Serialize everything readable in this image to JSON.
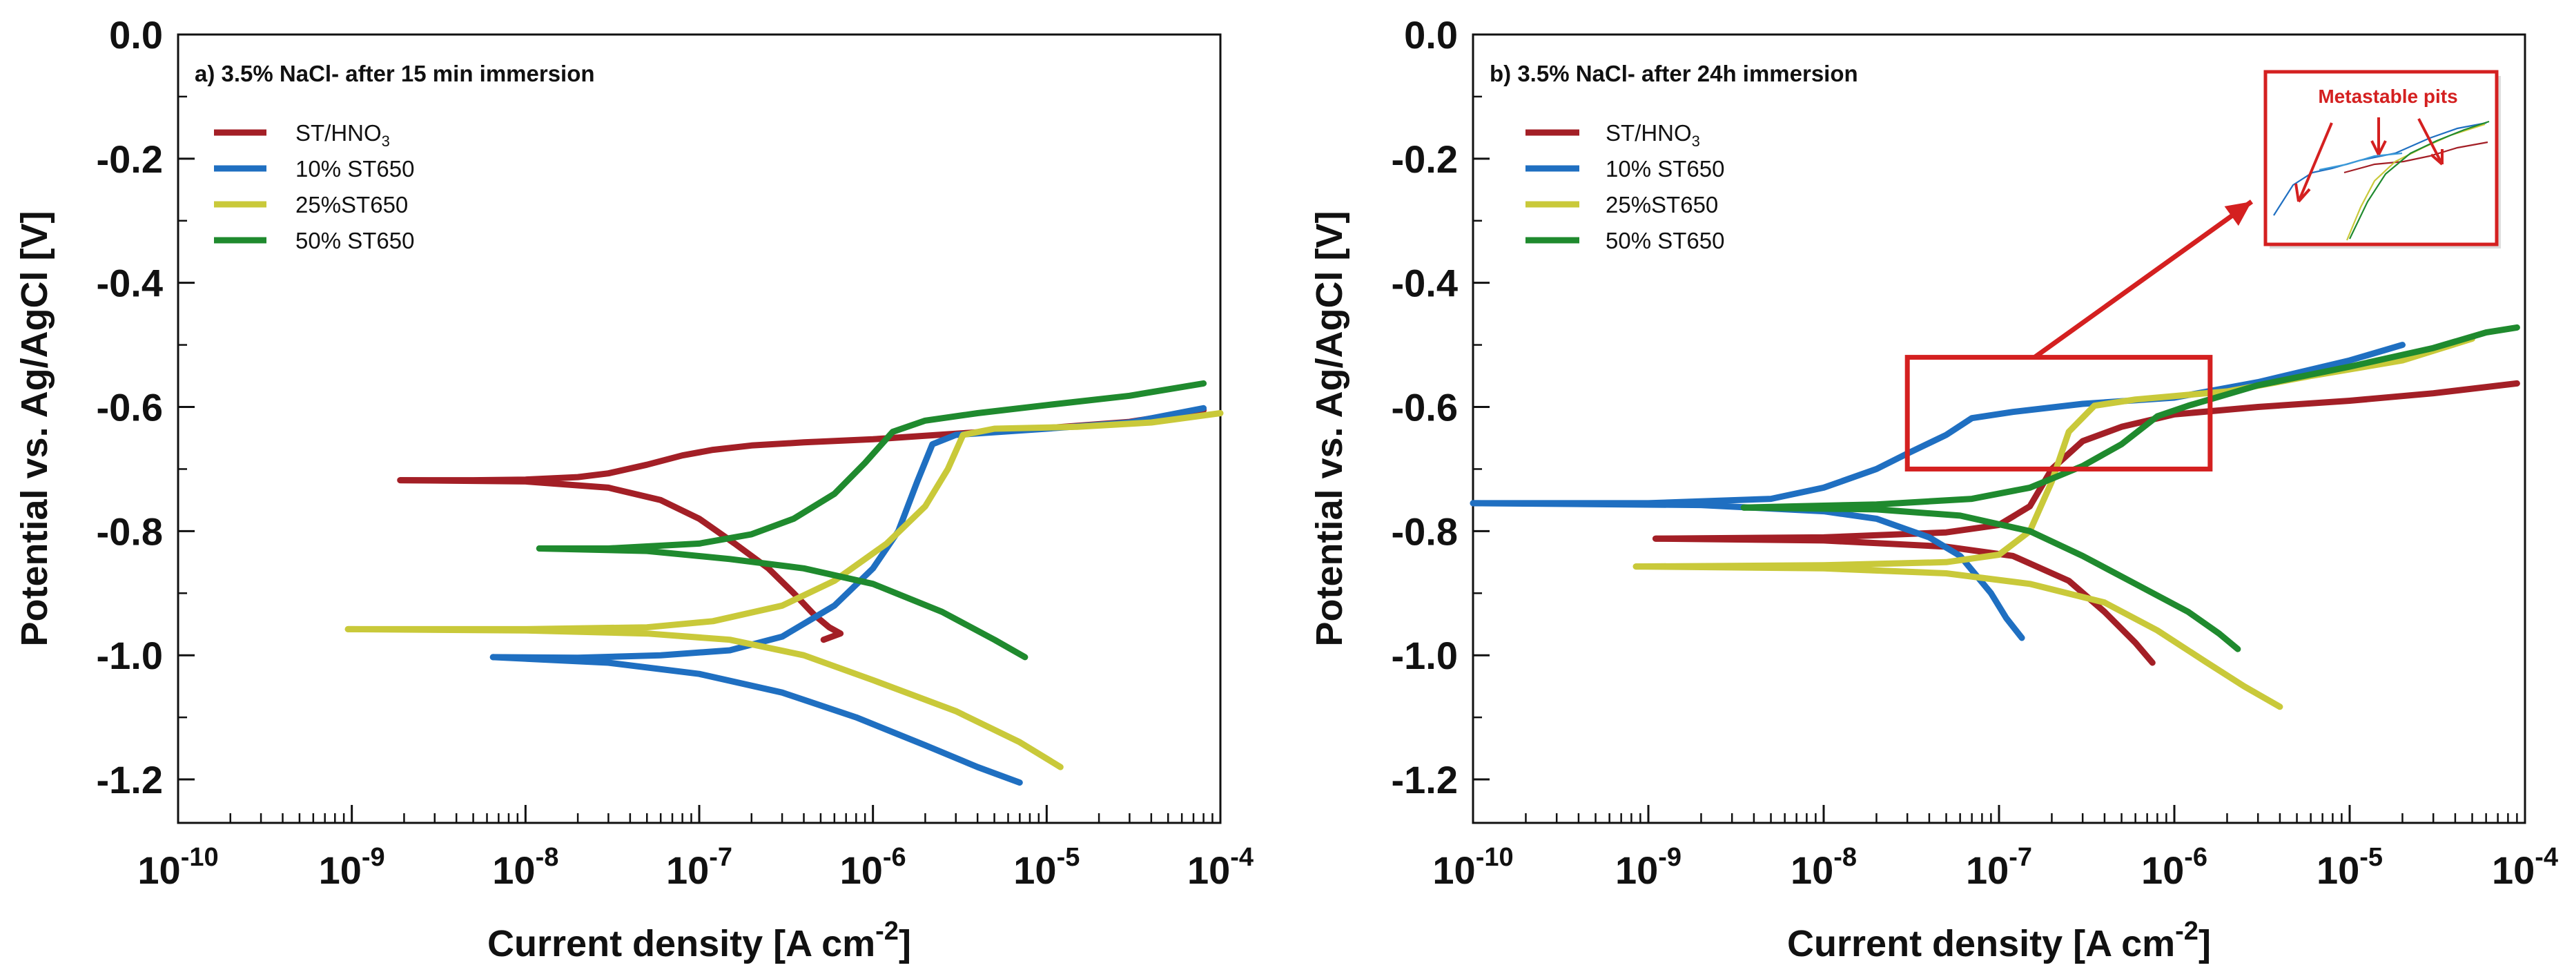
{
  "chart_data": [
    {
      "type": "line",
      "panel": "a",
      "title": "a) 3.5% NaCl- after 15 min immersion",
      "xlabel": {
        "main": "Current density [A cm",
        "sup": "-2",
        "close": "]"
      },
      "ylabel": "Potential vs. Ag/AgCl  [V]",
      "xscale": "log",
      "xlim": [
        1e-10,
        0.0001
      ],
      "ylim": [
        -1.27,
        0.0
      ],
      "xticks": [
        {
          "value": 1e-10,
          "base": "10",
          "exp": "-10"
        },
        {
          "value": 1e-09,
          "base": "10",
          "exp": "-9"
        },
        {
          "value": 1e-08,
          "base": "10",
          "exp": "-8"
        },
        {
          "value": 1e-07,
          "base": "10",
          "exp": "-7"
        },
        {
          "value": 1e-06,
          "base": "10",
          "exp": "-6"
        },
        {
          "value": 1e-05,
          "base": "10",
          "exp": "-5"
        },
        {
          "value": 0.0001,
          "base": "10",
          "exp": "-4"
        }
      ],
      "yticks": [
        {
          "value": 0.0,
          "label": "0.0"
        },
        {
          "value": -0.2,
          "label": "-0.2"
        },
        {
          "value": -0.4,
          "label": "-0.4"
        },
        {
          "value": -0.6,
          "label": "-0.6"
        },
        {
          "value": -0.8,
          "label": "-0.8"
        },
        {
          "value": -1.0,
          "label": "-1.0"
        },
        {
          "value": -1.2,
          "label": "-1.2"
        }
      ],
      "legend_position": "top-left",
      "series": [
        {
          "name": "ST/HNO",
          "sub": "3",
          "color": "#a31f26",
          "values": [
            [
              1.9e-09,
              -0.718
            ],
            [
              5e-09,
              -0.718
            ],
            [
              1e-08,
              -0.717
            ],
            [
              2e-08,
              -0.713
            ],
            [
              3e-08,
              -0.707
            ],
            [
              5e-08,
              -0.693
            ],
            [
              8e-08,
              -0.678
            ],
            [
              1.2e-07,
              -0.669
            ],
            [
              2e-07,
              -0.662
            ],
            [
              4e-07,
              -0.657
            ],
            [
              1e-06,
              -0.652
            ],
            [
              3e-06,
              -0.643
            ],
            [
              1e-05,
              -0.634
            ],
            [
              3e-05,
              -0.624
            ],
            [
              8e-05,
              -0.605
            ]
          ]
        },
        {
          "name": "ST/HNO",
          "sub": "3",
          "legend": false,
          "color": "#a31f26",
          "values": [
            [
              1.9e-09,
              -0.718
            ],
            [
              1e-08,
              -0.72
            ],
            [
              3e-08,
              -0.73
            ],
            [
              6e-08,
              -0.75
            ],
            [
              1e-07,
              -0.78
            ],
            [
              1.6e-07,
              -0.82
            ],
            [
              2.5e-07,
              -0.86
            ],
            [
              3.5e-07,
              -0.9
            ],
            [
              4.6e-07,
              -0.935
            ],
            [
              5.6e-07,
              -0.955
            ],
            [
              6.5e-07,
              -0.965
            ],
            [
              5.2e-07,
              -0.975
            ]
          ]
        },
        {
          "name": "10% ST650",
          "color": "#1f6fc1",
          "values": [
            [
              6.5e-09,
              -1.003
            ],
            [
              2e-08,
              -1.004
            ],
            [
              6e-08,
              -1.0
            ],
            [
              1.5e-07,
              -0.992
            ],
            [
              3e-07,
              -0.97
            ],
            [
              6e-07,
              -0.92
            ],
            [
              1e-06,
              -0.86
            ],
            [
              1.4e-06,
              -0.8
            ],
            [
              1.8e-06,
              -0.72
            ],
            [
              2.2e-06,
              -0.66
            ],
            [
              3e-06,
              -0.645
            ],
            [
              1e-05,
              -0.635
            ],
            [
              3e-05,
              -0.625
            ],
            [
              8e-05,
              -0.602
            ]
          ]
        },
        {
          "name": "10% ST650",
          "legend": false,
          "color": "#1f6fc1",
          "values": [
            [
              6.5e-09,
              -1.003
            ],
            [
              3e-08,
              -1.012
            ],
            [
              1e-07,
              -1.03
            ],
            [
              3e-07,
              -1.06
            ],
            [
              8e-07,
              -1.1
            ],
            [
              2e-06,
              -1.145
            ],
            [
              4e-06,
              -1.18
            ],
            [
              7e-06,
              -1.205
            ]
          ]
        },
        {
          "name": "25%ST650",
          "color": "#c9c93a",
          "values": [
            [
              9.5e-10,
              -0.958
            ],
            [
              1e-08,
              -0.958
            ],
            [
              5e-08,
              -0.955
            ],
            [
              1.2e-07,
              -0.945
            ],
            [
              3e-07,
              -0.92
            ],
            [
              6e-07,
              -0.88
            ],
            [
              1.2e-06,
              -0.82
            ],
            [
              2e-06,
              -0.76
            ],
            [
              2.7e-06,
              -0.7
            ],
            [
              3.3e-06,
              -0.645
            ],
            [
              5e-06,
              -0.635
            ],
            [
              1.5e-05,
              -0.632
            ],
            [
              4e-05,
              -0.625
            ],
            [
              0.0001,
              -0.61
            ]
          ]
        },
        {
          "name": "25%ST650",
          "legend": false,
          "color": "#c9c93a",
          "values": [
            [
              9.5e-10,
              -0.958
            ],
            [
              1e-08,
              -0.96
            ],
            [
              5e-08,
              -0.965
            ],
            [
              1.5e-07,
              -0.975
            ],
            [
              4e-07,
              -1.0
            ],
            [
              1e-06,
              -1.04
            ],
            [
              3e-06,
              -1.09
            ],
            [
              7e-06,
              -1.14
            ],
            [
              1.2e-05,
              -1.18
            ]
          ]
        },
        {
          "name": "50% ST650",
          "color": "#1f8a2e",
          "values": [
            [
              1.2e-08,
              -0.828
            ],
            [
              3e-08,
              -0.828
            ],
            [
              1e-07,
              -0.82
            ],
            [
              2e-07,
              -0.805
            ],
            [
              3.5e-07,
              -0.78
            ],
            [
              6e-07,
              -0.74
            ],
            [
              9e-07,
              -0.69
            ],
            [
              1.3e-06,
              -0.64
            ],
            [
              2e-06,
              -0.622
            ],
            [
              4e-06,
              -0.61
            ],
            [
              1e-05,
              -0.597
            ],
            [
              3e-05,
              -0.582
            ],
            [
              8e-05,
              -0.562
            ]
          ]
        },
        {
          "name": "50% ST650",
          "legend": false,
          "color": "#1f8a2e",
          "values": [
            [
              1.2e-08,
              -0.828
            ],
            [
              5e-08,
              -0.832
            ],
            [
              1.5e-07,
              -0.845
            ],
            [
              4e-07,
              -0.86
            ],
            [
              1e-06,
              -0.885
            ],
            [
              2.5e-06,
              -0.93
            ],
            [
              5e-06,
              -0.975
            ],
            [
              7.5e-06,
              -1.003
            ]
          ]
        }
      ]
    },
    {
      "type": "line",
      "panel": "b",
      "title": "b) 3.5% NaCl- after 24h immersion",
      "xlabel": {
        "main": "Current density [A cm",
        "sup": "-2",
        "close": "]"
      },
      "ylabel": "Potential vs. Ag/AgCl  [V]",
      "xscale": "log",
      "xlim": [
        1e-10,
        0.0001
      ],
      "ylim": [
        -1.27,
        0.0
      ],
      "xticks": [
        {
          "value": 1e-10,
          "base": "10",
          "exp": "-10"
        },
        {
          "value": 1e-09,
          "base": "10",
          "exp": "-9"
        },
        {
          "value": 1e-08,
          "base": "10",
          "exp": "-8"
        },
        {
          "value": 1e-07,
          "base": "10",
          "exp": "-7"
        },
        {
          "value": 1e-06,
          "base": "10",
          "exp": "-6"
        },
        {
          "value": 1e-05,
          "base": "10",
          "exp": "-5"
        },
        {
          "value": 0.0001,
          "base": "10",
          "exp": "-4"
        }
      ],
      "yticks": [
        {
          "value": 0.0,
          "label": "0.0"
        },
        {
          "value": -0.2,
          "label": "-0.2"
        },
        {
          "value": -0.4,
          "label": "-0.4"
        },
        {
          "value": -0.6,
          "label": "-0.6"
        },
        {
          "value": -0.8,
          "label": "-0.8"
        },
        {
          "value": -1.0,
          "label": "-1.0"
        },
        {
          "value": -1.2,
          "label": "-1.2"
        }
      ],
      "legend_position": "top-left",
      "annotation": {
        "label": "Metastable pits",
        "region": {
          "x": [
            3e-08,
            1.6e-06
          ],
          "y": [
            -0.7,
            -0.52
          ]
        }
      },
      "series": [
        {
          "name": "ST/HNO",
          "sub": "3",
          "color": "#a31f26",
          "values": [
            [
              1.1e-09,
              -0.812
            ],
            [
              1e-08,
              -0.81
            ],
            [
              5e-08,
              -0.802
            ],
            [
              1e-07,
              -0.79
            ],
            [
              1.5e-07,
              -0.76
            ],
            [
              2e-07,
              -0.7
            ],
            [
              3e-07,
              -0.655
            ],
            [
              5e-07,
              -0.632
            ],
            [
              1e-06,
              -0.612
            ],
            [
              3e-06,
              -0.6
            ],
            [
              1e-05,
              -0.59
            ],
            [
              3e-05,
              -0.578
            ],
            [
              9e-05,
              -0.562
            ]
          ]
        },
        {
          "name": "ST/HNO",
          "sub": "3",
          "legend": false,
          "color": "#a31f26",
          "values": [
            [
              1.1e-09,
              -0.812
            ],
            [
              1e-08,
              -0.815
            ],
            [
              5e-08,
              -0.825
            ],
            [
              1.2e-07,
              -0.84
            ],
            [
              2.5e-07,
              -0.88
            ],
            [
              4e-07,
              -0.93
            ],
            [
              6e-07,
              -0.98
            ],
            [
              7.5e-07,
              -1.012
            ]
          ]
        },
        {
          "name": "10% ST650",
          "color": "#1f6fc1",
          "values": [
            [
              1e-10,
              -0.755
            ],
            [
              1e-09,
              -0.755
            ],
            [
              5e-09,
              -0.748
            ],
            [
              1e-08,
              -0.73
            ],
            [
              2e-08,
              -0.7
            ],
            [
              3e-08,
              -0.675
            ],
            [
              5e-08,
              -0.645
            ],
            [
              7e-08,
              -0.618
            ],
            [
              1.2e-07,
              -0.608
            ],
            [
              3e-07,
              -0.595
            ],
            [
              1e-06,
              -0.585
            ],
            [
              3e-06,
              -0.56
            ],
            [
              1e-05,
              -0.525
            ],
            [
              2e-05,
              -0.5
            ]
          ]
        },
        {
          "name": "10% ST650",
          "legend": false,
          "color": "#1f6fc1",
          "values": [
            [
              1e-10,
              -0.755
            ],
            [
              2e-09,
              -0.758
            ],
            [
              1e-08,
              -0.768
            ],
            [
              2e-08,
              -0.78
            ],
            [
              4e-08,
              -0.81
            ],
            [
              6e-08,
              -0.84
            ],
            [
              9e-08,
              -0.9
            ],
            [
              1.1e-07,
              -0.94
            ],
            [
              1.35e-07,
              -0.972
            ]
          ]
        },
        {
          "name": "25%ST650",
          "color": "#c9c93a",
          "values": [
            [
              8.5e-10,
              -0.857
            ],
            [
              1e-08,
              -0.855
            ],
            [
              5e-08,
              -0.85
            ],
            [
              1e-07,
              -0.838
            ],
            [
              1.5e-07,
              -0.8
            ],
            [
              2e-07,
              -0.72
            ],
            [
              2.5e-07,
              -0.64
            ],
            [
              3.5e-07,
              -0.598
            ],
            [
              6e-07,
              -0.588
            ],
            [
              2e-06,
              -0.575
            ],
            [
              6e-06,
              -0.55
            ],
            [
              2e-05,
              -0.525
            ],
            [
              5e-05,
              -0.49
            ]
          ]
        },
        {
          "name": "25%ST650",
          "legend": false,
          "color": "#c9c93a",
          "values": [
            [
              8.5e-10,
              -0.857
            ],
            [
              1e-08,
              -0.86
            ],
            [
              5e-08,
              -0.868
            ],
            [
              1.5e-07,
              -0.885
            ],
            [
              4e-07,
              -0.915
            ],
            [
              8e-07,
              -0.96
            ],
            [
              1.5e-06,
              -1.01
            ],
            [
              2.5e-06,
              -1.05
            ],
            [
              4e-06,
              -1.083
            ]
          ]
        },
        {
          "name": "50% ST650",
          "color": "#1f8a2e",
          "values": [
            [
              3.5e-09,
              -0.762
            ],
            [
              2e-08,
              -0.757
            ],
            [
              7e-08,
              -0.748
            ],
            [
              1.5e-07,
              -0.73
            ],
            [
              3e-07,
              -0.695
            ],
            [
              5e-07,
              -0.66
            ],
            [
              8e-07,
              -0.615
            ],
            [
              1.2e-06,
              -0.598
            ],
            [
              3e-06,
              -0.565
            ],
            [
              1e-05,
              -0.535
            ],
            [
              3e-05,
              -0.505
            ],
            [
              6e-05,
              -0.48
            ],
            [
              9e-05,
              -0.472
            ]
          ]
        },
        {
          "name": "50% ST650",
          "legend": false,
          "color": "#1f8a2e",
          "values": [
            [
              3.5e-09,
              -0.762
            ],
            [
              2e-08,
              -0.765
            ],
            [
              6e-08,
              -0.775
            ],
            [
              1.5e-07,
              -0.8
            ],
            [
              3e-07,
              -0.84
            ],
            [
              6e-07,
              -0.885
            ],
            [
              1.2e-06,
              -0.93
            ],
            [
              1.8e-06,
              -0.965
            ],
            [
              2.3e-06,
              -0.99
            ]
          ]
        }
      ]
    }
  ]
}
